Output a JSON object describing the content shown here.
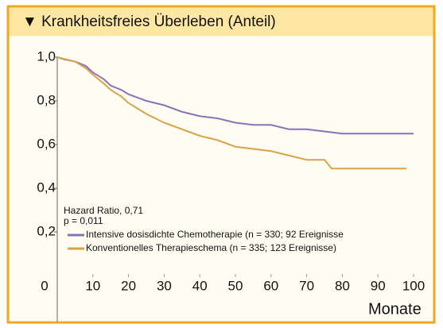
{
  "chart_data": {
    "type": "line",
    "title": "▼ Krankheitsfreies Überleben (Anteil)",
    "x_label": "Monate",
    "annotations": [
      "Hazard Ratio, 0,71",
      "p = 0,011"
    ],
    "xlim": [
      0,
      100
    ],
    "xticks": [
      10,
      20,
      30,
      40,
      50,
      60,
      70,
      80,
      90,
      100
    ],
    "ylim": [
      0,
      1
    ],
    "yticks": [
      0,
      {
        "value": 0.2,
        "label": "0,2"
      },
      {
        "value": 0.4,
        "label": "0,4"
      },
      {
        "value": 0.6,
        "label": "0,6"
      },
      {
        "value": 0.8,
        "label": "0,8"
      },
      {
        "value": 1,
        "label": "1,0"
      }
    ],
    "series": [
      {
        "name": "Intensive dosisdichte Chemotherapie (n = 330; 92 Ereignisse",
        "color": "#8a72b6",
        "x": [
          0,
          2,
          5,
          8,
          10,
          13,
          15,
          18,
          20,
          25,
          30,
          35,
          40,
          45,
          50,
          55,
          60,
          65,
          70,
          75,
          80,
          90,
          100
        ],
        "values": [
          1.0,
          0.99,
          0.98,
          0.96,
          0.93,
          0.9,
          0.87,
          0.85,
          0.83,
          0.8,
          0.78,
          0.75,
          0.73,
          0.72,
          0.7,
          0.69,
          0.69,
          0.67,
          0.67,
          0.66,
          0.65,
          0.65,
          0.65
        ]
      },
      {
        "name": "Konventionelles Therapieschema (n = 335; 123 Ereignisse)",
        "color": "#d9a24c",
        "x": [
          0,
          5,
          8,
          10,
          13,
          15,
          18,
          20,
          25,
          30,
          35,
          40,
          45,
          50,
          55,
          60,
          65,
          70,
          75,
          77,
          80,
          98
        ],
        "values": [
          1.0,
          0.98,
          0.95,
          0.92,
          0.88,
          0.85,
          0.82,
          0.79,
          0.74,
          0.7,
          0.67,
          0.64,
          0.62,
          0.59,
          0.58,
          0.57,
          0.55,
          0.53,
          0.53,
          0.49,
          0.49,
          0.49
        ]
      }
    ]
  }
}
